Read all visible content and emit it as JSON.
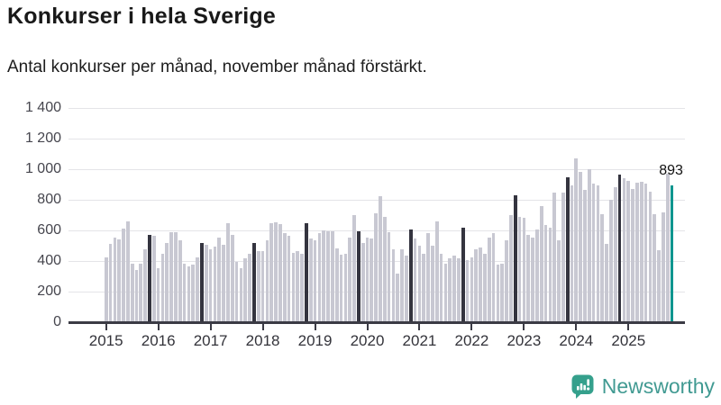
{
  "header": {
    "title": "Konkurser i hela Sverige",
    "subtitle": "Antal konkurser per månad, november månad förstärkt."
  },
  "chart_data": {
    "type": "bar",
    "title": "Konkurser i hela Sverige",
    "subtitle": "Antal konkurser per månad, november månad förstärkt.",
    "xlabel": "",
    "ylabel": "",
    "ylim": [
      0,
      1400
    ],
    "grid": "horizontal",
    "y_tick_values": [
      0,
      200,
      400,
      600,
      800,
      1000,
      1200,
      1400
    ],
    "y_tick_labels": [
      "0",
      "200",
      "400",
      "600",
      "800",
      "1 000",
      "1 200",
      "1 400"
    ],
    "x_tick_labels": [
      "2015",
      "2016",
      "2017",
      "2018",
      "2019",
      "2020",
      "2021",
      "2022",
      "2023",
      "2024",
      "2025"
    ],
    "highlight_month": "november",
    "highlight_month_index": 10,
    "series": [
      {
        "year": 2015,
        "values": [
          425,
          510,
          555,
          540,
          610,
          660,
          385,
          340,
          385,
          475,
          570,
          565
        ]
      },
      {
        "year": 2016,
        "values": [
          355,
          445,
          515,
          590,
          590,
          535,
          385,
          365,
          375,
          425,
          520,
          505
        ]
      },
      {
        "year": 2017,
        "values": [
          475,
          495,
          555,
          505,
          650,
          570,
          395,
          355,
          415,
          445,
          520,
          465
        ]
      },
      {
        "year": 2018,
        "values": [
          465,
          535,
          650,
          655,
          640,
          580,
          565,
          455,
          465,
          445,
          645,
          545
        ]
      },
      {
        "year": 2019,
        "values": [
          535,
          580,
          600,
          595,
          595,
          485,
          440,
          445,
          555,
          700,
          595,
          515
        ]
      },
      {
        "year": 2020,
        "values": [
          555,
          550,
          710,
          825,
          690,
          590,
          475,
          320,
          475,
          435,
          605,
          550
        ]
      },
      {
        "year": 2021,
        "values": [
          500,
          450,
          580,
          500,
          660,
          450,
          385,
          420,
          435,
          420,
          620,
          405
        ]
      },
      {
        "year": 2022,
        "values": [
          425,
          475,
          490,
          445,
          555,
          580,
          375,
          385,
          535,
          700,
          830,
          690
        ]
      },
      {
        "year": 2023,
        "values": [
          680,
          570,
          555,
          605,
          760,
          635,
          620,
          845,
          535,
          845,
          950,
          895
        ]
      },
      {
        "year": 2024,
        "values": [
          1070,
          980,
          865,
          1000,
          905,
          895,
          705,
          510,
          800,
          880,
          965,
          940
        ]
      },
      {
        "year": 2025,
        "values": [
          925,
          870,
          910,
          920,
          905,
          855,
          705,
          470,
          715,
          970,
          893
        ]
      }
    ],
    "annotation": {
      "text": "893",
      "year": 2025,
      "month": "november",
      "value": 893
    },
    "colors": {
      "bar_default": "#c8c8d2",
      "bar_november": "#34343f",
      "bar_latest": "#0e968f",
      "gridline": "#e4e4e8",
      "axis": "#3b3b45"
    }
  },
  "footer": {
    "brand": "Newsworthy",
    "brand_color": "#419a92"
  }
}
